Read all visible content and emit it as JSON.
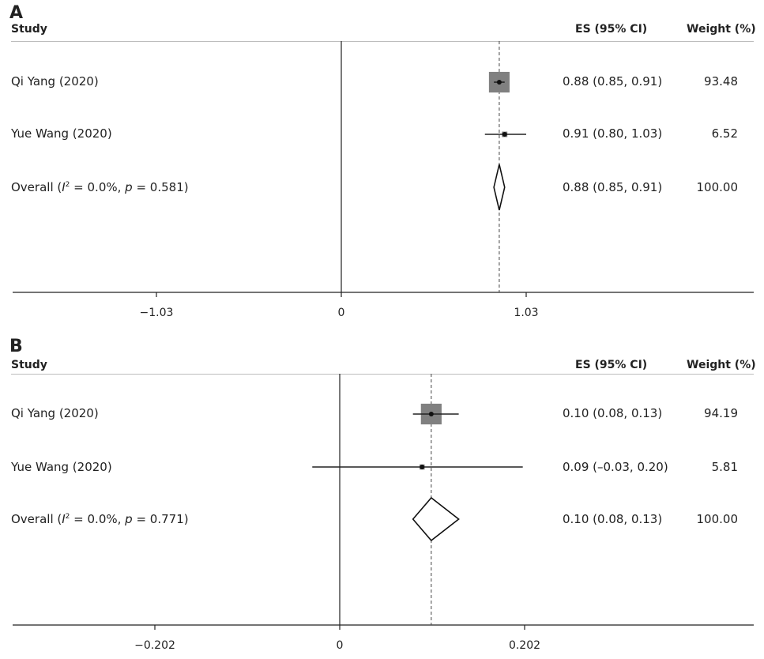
{
  "chart_data": [
    {
      "type": "forest",
      "panel_label": "A",
      "columns": {
        "study": "Study",
        "es": "ES (95% CI)",
        "weight": "Weight (%)"
      },
      "xticks": [
        -1.03,
        0,
        1.03
      ],
      "xtick_labels": [
        "−1.03",
        "0",
        "1.03"
      ],
      "xlim": [
        -1.85,
        2.3
      ],
      "null_line": 0,
      "pooled_line": 0.88,
      "rows": [
        {
          "study": "Qi Yang (2020)",
          "es": 0.88,
          "lo": 0.85,
          "hi": 0.91,
          "es_text": "0.88 (0.85, 0.91)",
          "weight": "93.48",
          "w": 93.48,
          "kind": "study"
        },
        {
          "study": "Yue Wang (2020)",
          "es": 0.91,
          "lo": 0.8,
          "hi": 1.03,
          "es_text": "0.91 (0.80, 1.03)",
          "weight": "6.52",
          "w": 6.52,
          "kind": "study"
        },
        {
          "study_prefix": "Overall (",
          "study_i": "I",
          "study_sup": "2",
          "study_mid": " = 0.0%, ",
          "study_p": "p",
          "study_suffix": " = 0.581)",
          "es": 0.88,
          "lo": 0.85,
          "hi": 0.91,
          "es_text": "0.88 (0.85, 0.91)",
          "weight": "100.00",
          "kind": "overall"
        }
      ]
    },
    {
      "type": "forest",
      "panel_label": "B",
      "columns": {
        "study": "Study",
        "es": "ES (95% CI)",
        "weight": "Weight (%)"
      },
      "xticks": [
        -0.202,
        0,
        0.202
      ],
      "xtick_labels": [
        "−0.202",
        "0",
        "0.202"
      ],
      "xlim": [
        -0.37,
        0.455
      ],
      "null_line": 0,
      "pooled_line": 0.1,
      "rows": [
        {
          "study": "Qi Yang (2020)",
          "es": 0.1,
          "lo": 0.08,
          "hi": 0.13,
          "es_text": "0.10 (0.08, 0.13)",
          "weight": "94.19",
          "w": 94.19,
          "kind": "study"
        },
        {
          "study": "Yue Wang (2020)",
          "es": 0.09,
          "lo": -0.03,
          "hi": 0.2,
          "es_text": "0.09 (–0.03, 0.20)",
          "weight": "5.81",
          "w": 5.81,
          "kind": "study"
        },
        {
          "study_prefix": "Overall (",
          "study_i": "I",
          "study_sup": "2",
          "study_mid": " = 0.0%, ",
          "study_p": "p",
          "study_suffix": " = 0.771)",
          "es": 0.1,
          "lo": 0.08,
          "hi": 0.13,
          "es_text": "0.10 (0.08, 0.13)",
          "weight": "100.00",
          "kind": "overall"
        }
      ]
    }
  ]
}
